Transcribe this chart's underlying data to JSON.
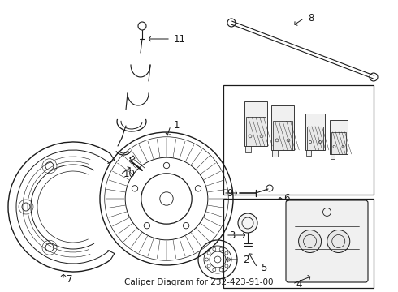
{
  "title": "Caliper Diagram for 232-423-91-00",
  "bg_color": "#ffffff",
  "line_color": "#1a1a1a",
  "figsize": [
    4.9,
    3.6
  ],
  "dpi": 100,
  "title_fontsize": 7.5,
  "label_fontsize": 8.5
}
